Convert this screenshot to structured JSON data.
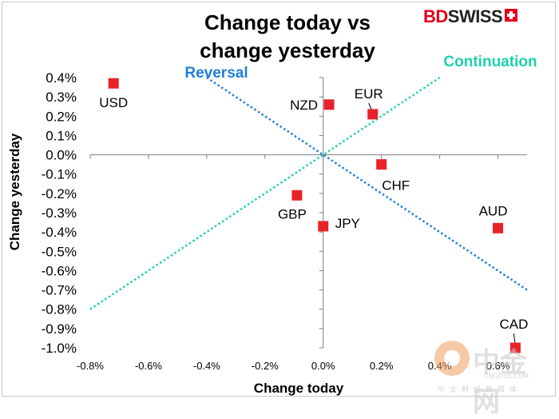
{
  "brand": {
    "bd": "BD",
    "swiss": "SWISS"
  },
  "watermark": {
    "main": "中金网",
    "domain": "CNGOLD.COM",
    "row": "中文财经新媒体"
  },
  "chart_data": {
    "type": "scatter",
    "title": [
      "Change today vs",
      "change yesterday"
    ],
    "xlabel": "Change today",
    "ylabel": "Change yesterday",
    "xlim": [
      -0.8,
      0.7
    ],
    "ylim": [
      -1.0,
      0.4
    ],
    "x_ticks": [
      -0.8,
      -0.6,
      -0.4,
      -0.2,
      0.0,
      0.2,
      0.4,
      0.6
    ],
    "x_tick_labels": [
      "-0.8%",
      "-0.6%",
      "-0.4%",
      "-0.2%",
      "0.0%",
      "0.2%",
      "0.4%",
      "0.6%"
    ],
    "y_ticks": [
      0.4,
      0.3,
      0.2,
      0.1,
      0.0,
      -0.1,
      -0.2,
      -0.3,
      -0.4,
      -0.5,
      -0.6,
      -0.7,
      -0.8,
      -0.9,
      -1.0
    ],
    "y_tick_labels": [
      "0.4%",
      "0.3%",
      "0.2%",
      "0.1%",
      "0.0%",
      "-0.1%",
      "-0.2%",
      "-0.3%",
      "-0.4%",
      "-0.5%",
      "-0.6%",
      "-0.7%",
      "-0.8%",
      "-0.9%",
      "-1.0%"
    ],
    "marker_color": "#e8222a",
    "points": [
      {
        "label": "USD",
        "x": -0.72,
        "y": 0.37
      },
      {
        "label": "NZD",
        "x": 0.02,
        "y": 0.26
      },
      {
        "label": "EUR",
        "x": 0.17,
        "y": 0.21
      },
      {
        "label": "CHF",
        "x": 0.2,
        "y": -0.05
      },
      {
        "label": "GBP",
        "x": -0.09,
        "y": -0.21
      },
      {
        "label": "JPY",
        "x": 0.0,
        "y": -0.37
      },
      {
        "label": "AUD",
        "x": 0.6,
        "y": -0.38
      },
      {
        "label": "CAD",
        "x": 0.66,
        "y": -1.0
      }
    ],
    "reference_lines": [
      {
        "name": "Reversal",
        "color": "#1f7fd8",
        "points": [
          [
            -0.4,
            0.4
          ],
          [
            0.7,
            -0.7
          ]
        ]
      },
      {
        "name": "Continuation",
        "color": "#1fd0ad",
        "points": [
          [
            -0.8,
            -0.8
          ],
          [
            0.4,
            0.4
          ]
        ]
      }
    ],
    "grid": false,
    "legend": "none"
  }
}
